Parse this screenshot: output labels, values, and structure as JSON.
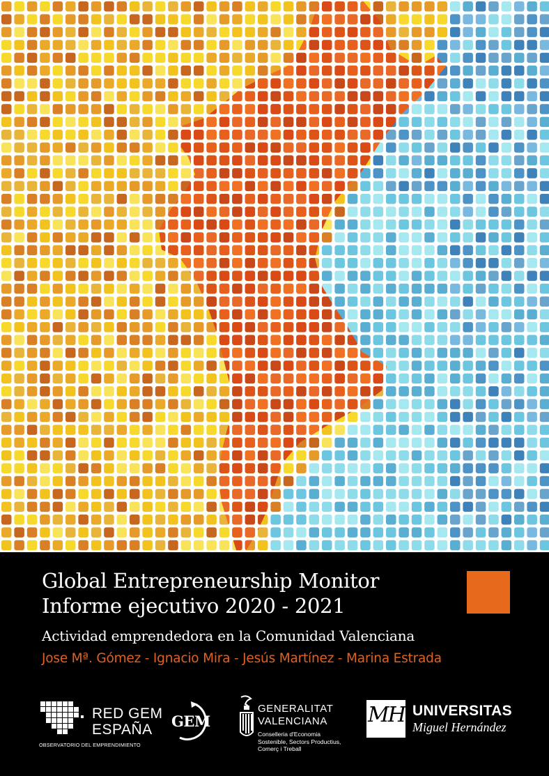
{
  "report": {
    "title": "Global Entrepreneurship Monitor",
    "subtitle": "Informe ejecutivo 2020 - 2021",
    "tagline": "Actividad emprendedora en la Comunidad Valenciana",
    "authors": "Jose Mª. Gómez - Ignacio Mira - Jesús Martínez - Marina Estrada"
  },
  "logos": {
    "redgem": {
      "line1": "RED GEM",
      "line2": "ESPAÑA",
      "line3": "OBSERVATORIO DEL EMPRENDIMIENTO"
    },
    "gem": {
      "text": "GEM"
    },
    "generalitat": {
      "line1": "GENERALITAT",
      "line2": "VALENCIANA",
      "line3": "Conselleria d'Economia",
      "line4": "Sostenible, Sectors Productius,",
      "line5": "Comerç i Treball"
    },
    "umh": {
      "monogram": "MH",
      "line1": "UNIVERSITAS",
      "line2": "Miguel Hernández"
    }
  },
  "colors": {
    "band_background": "#000000",
    "accent_orange": "#e76a1c",
    "authors_text": "#e0621f",
    "land_palette": [
      "#f6d92c",
      "#f2c31f",
      "#eaa928",
      "#e59a2a",
      "#d98026",
      "#c6661f",
      "#f8e35a",
      "#e8b43a"
    ],
    "region_palette": [
      "#e8601e",
      "#dd5418",
      "#f07024",
      "#d94a16",
      "#e96a28",
      "#c9481a"
    ],
    "sea_palette": [
      "#8edcea",
      "#6cc6df",
      "#5aaed2",
      "#4d93c6",
      "#79b9e0",
      "#a6e8f0",
      "#3f82b9",
      "#69a4cd"
    ]
  },
  "icons": {
    "orange_square": "orange-square-accent",
    "redgem_mark": "spain-pixel-map-icon",
    "gem_ring": "gem-arrow-ring-icon",
    "gva_crest": "valencia-crest-icon"
  }
}
